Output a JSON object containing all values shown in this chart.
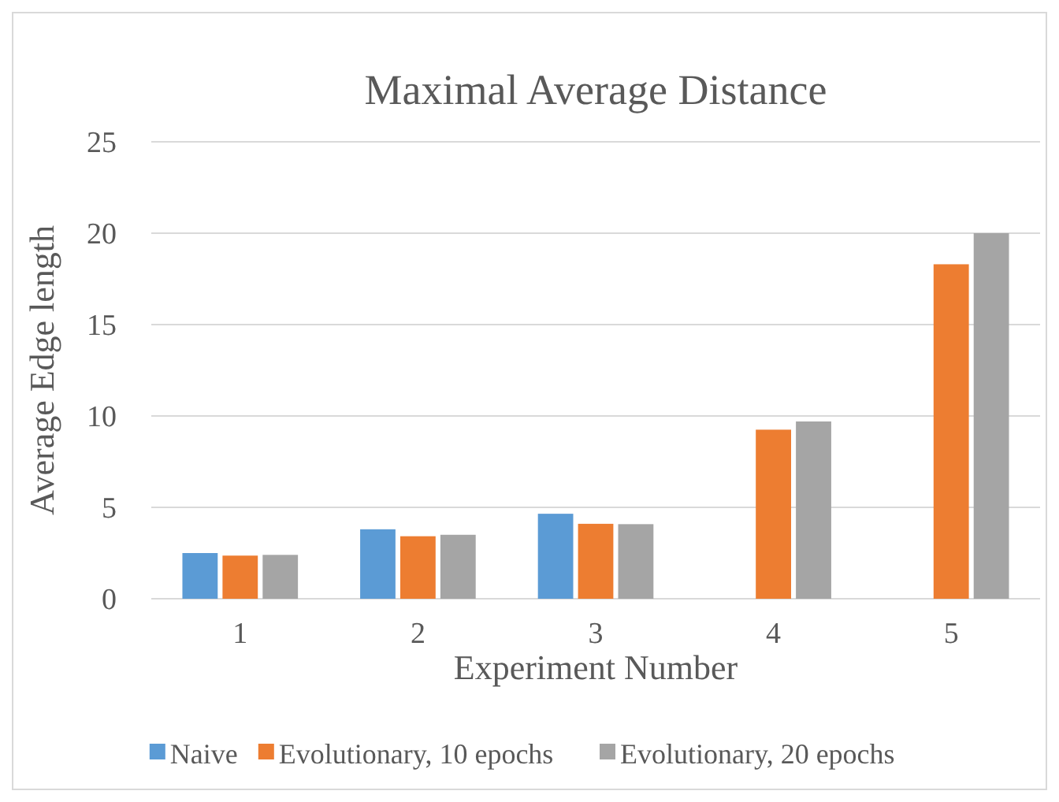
{
  "chart_data": {
    "type": "bar",
    "title": "Maximal Average Distance",
    "xlabel": "Experiment Number",
    "ylabel": "Average Edge length",
    "categories": [
      "1",
      "2",
      "3",
      "4",
      "5"
    ],
    "series": [
      {
        "name": "Naive",
        "color": "#5b9bd5",
        "values": [
          2.5,
          3.8,
          4.65,
          null,
          null
        ]
      },
      {
        "name": "Evolutionary, 10 epochs",
        "color": "#ed7d31",
        "values": [
          2.36,
          3.42,
          4.1,
          9.25,
          18.3
        ]
      },
      {
        "name": "Evolutionary, 20 epochs",
        "color": "#a5a5a5",
        "values": [
          2.4,
          3.5,
          4.08,
          9.7,
          20.0
        ]
      }
    ],
    "ylim": [
      0,
      25
    ],
    "yticks": [
      0,
      5,
      10,
      15,
      20,
      25
    ],
    "grid": "y",
    "legend": "bottom"
  }
}
